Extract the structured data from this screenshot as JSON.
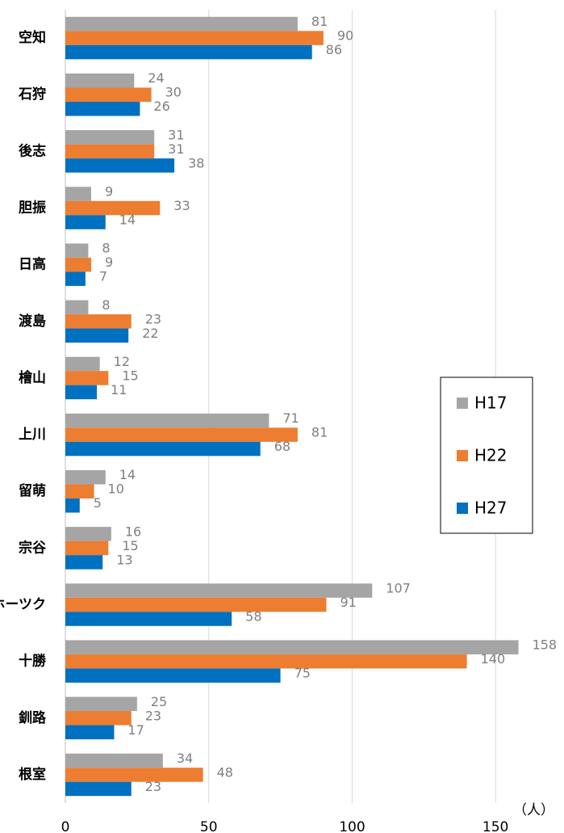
{
  "chart_data": {
    "type": "bar",
    "orientation": "horizontal",
    "x_label": "（人）",
    "categories": [
      "空知",
      "石狩",
      "後志",
      "胆振",
      "日高",
      "渡島",
      "檜山",
      "上川",
      "留萌",
      "宗谷",
      "オホーツク",
      "十勝",
      "釧路",
      "根室"
    ],
    "series": [
      {
        "name": "H17",
        "color": "#a5a5a5",
        "values": [
          81,
          24,
          31,
          9,
          8,
          8,
          12,
          71,
          14,
          16,
          107,
          158,
          25,
          34
        ]
      },
      {
        "name": "H22",
        "color": "#ed7d31",
        "values": [
          90,
          30,
          31,
          33,
          9,
          23,
          15,
          81,
          10,
          15,
          91,
          140,
          23,
          48
        ]
      },
      {
        "name": "H27",
        "color": "#0070c0",
        "values": [
          86,
          26,
          38,
          14,
          7,
          22,
          11,
          68,
          5,
          13,
          58,
          75,
          17,
          23
        ]
      }
    ],
    "xlim": [
      0,
      175
    ],
    "xticks": [
      0,
      50,
      100,
      150
    ],
    "grid": true,
    "legend": "right"
  }
}
